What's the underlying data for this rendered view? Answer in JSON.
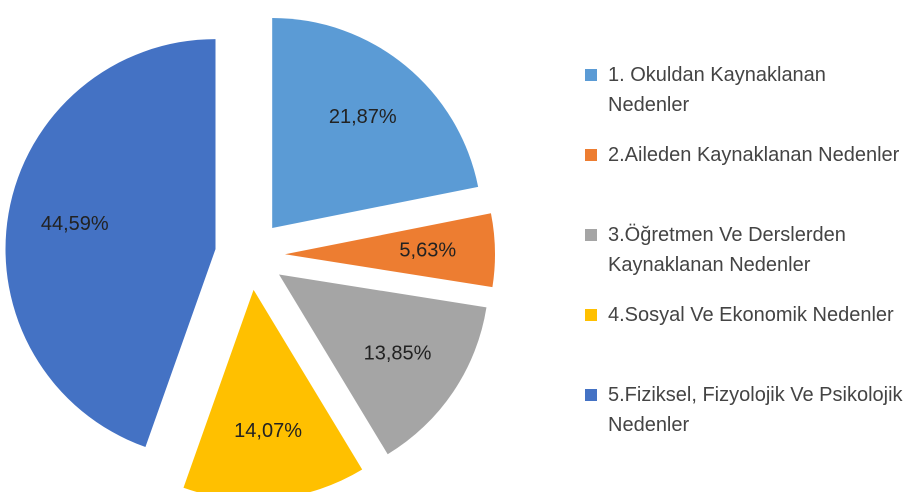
{
  "chart_data": {
    "type": "pie",
    "categories": [
      "1. Okuldan Kaynaklanan Nedenler",
      "2.Aileden Kaynaklanan Nedenler",
      "3.Öğretmen Ve Derslerden Kaynaklanan Nedenler",
      "4.Sosyal Ve Ekonomik Nedenler",
      "5.Fiziksel, Fizyolojik Ve Psikolojik Nedenler"
    ],
    "values": [
      21.87,
      5.63,
      13.85,
      14.07,
      44.59
    ],
    "value_labels": [
      "21,87%",
      "5,63%",
      "13,85%",
      "14,07%",
      "44,59%"
    ],
    "colors": [
      "#5b9bd5",
      "#ed7d31",
      "#a5a5a5",
      "#ffc000",
      "#4472c4"
    ],
    "legend": "right"
  }
}
